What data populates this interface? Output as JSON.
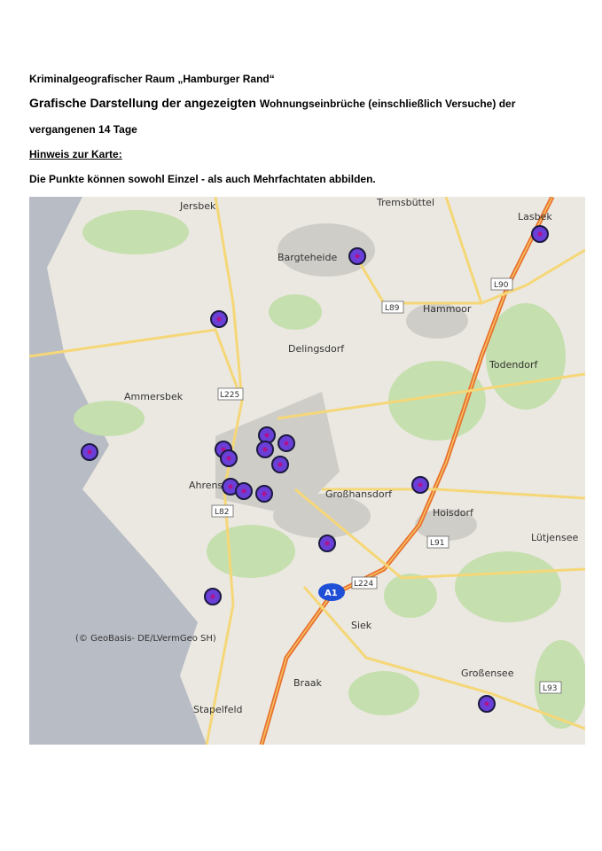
{
  "header": {
    "region": "Kriminalgeografischer Raum „Hamburger Rand“",
    "title_part1": "Grafische Darstellung der angezeigten",
    "title_part2": "Wohnungseinbrüche (einschließlich Versuche)  der",
    "title_line2": "vergangenen 14 Tage",
    "note_heading": "Hinweis zur Karte:",
    "note_text": "Die  Punkte können sowohl Einzel - als auch Mehrfachtaten abbilden."
  },
  "map": {
    "places": [
      "Jersbek",
      "Tremsbüttel",
      "Lasbek",
      "Bargteheide",
      "Hammoor",
      "Delingsdorf",
      "Todendorf",
      "Ammersbek",
      "Ahrensburg",
      "Großhansdorf",
      "Hoisdorf",
      "Lütjensee",
      "Siek",
      "Braak",
      "Großensee",
      "Stapelfeld"
    ],
    "roads": [
      "L90",
      "L89",
      "L225",
      "L82",
      "L91",
      "L224",
      "L93",
      "A1"
    ],
    "copyright": "(© GeoBasis- DE/LVermGeo SH)"
  }
}
